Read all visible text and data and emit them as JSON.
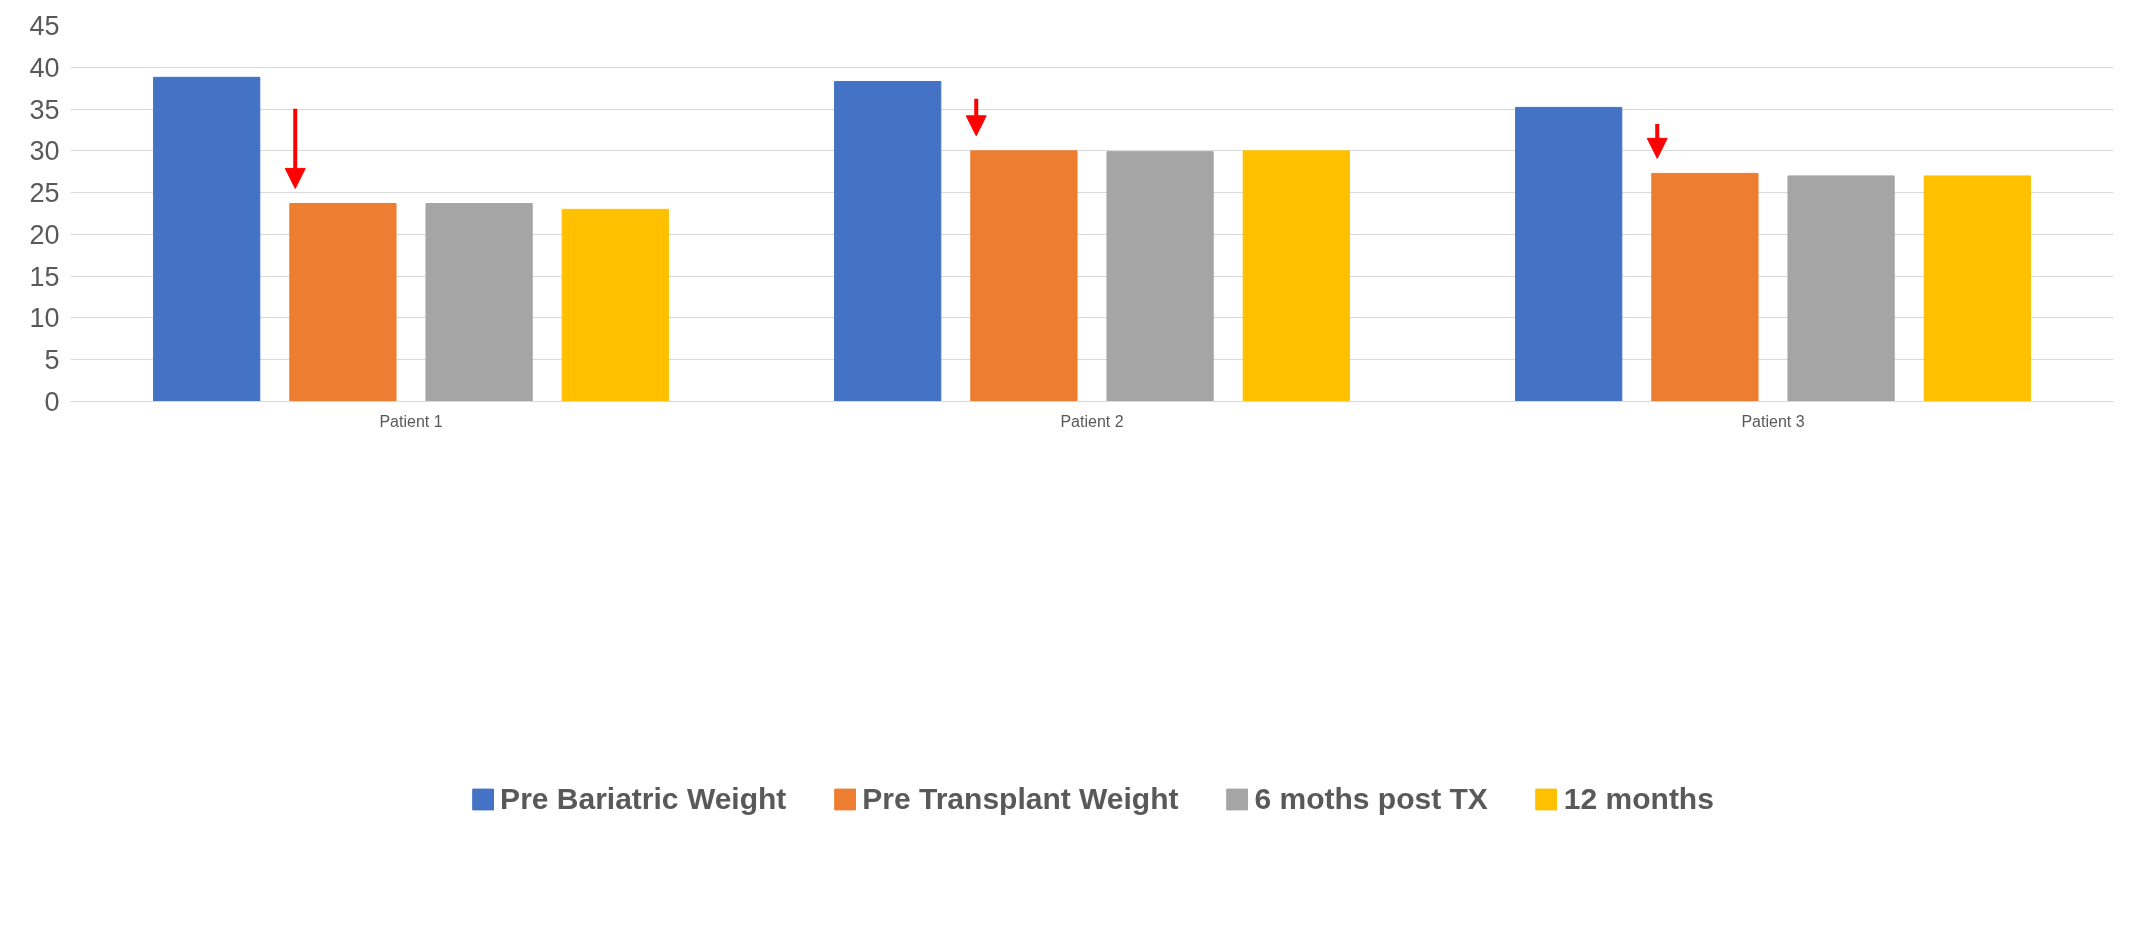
{
  "chart_data": {
    "type": "bar",
    "categories": [
      "Patient 1",
      "Patient 2",
      "Patient 3"
    ],
    "series": [
      {
        "name": "Pre Bariatric Weight",
        "color": "#4472c4",
        "values": [
          38.8,
          38.3,
          35.2
        ]
      },
      {
        "name": "Pre Transplant Weight",
        "color": "#ed7d31",
        "values": [
          23.7,
          30.0,
          27.3
        ]
      },
      {
        "name": "6 moths post TX",
        "color": "#a5a5a5",
        "values": [
          23.7,
          29.9,
          27.0
        ]
      },
      {
        "name": "12 months",
        "color": "#ffc000",
        "values": [
          23.0,
          30.0,
          27.0
        ]
      }
    ],
    "ylim": [
      0,
      45
    ],
    "yticks": [
      0,
      5,
      10,
      15,
      20,
      25,
      30,
      35,
      40,
      45
    ],
    "grid": "y",
    "legend": "bottom"
  }
}
